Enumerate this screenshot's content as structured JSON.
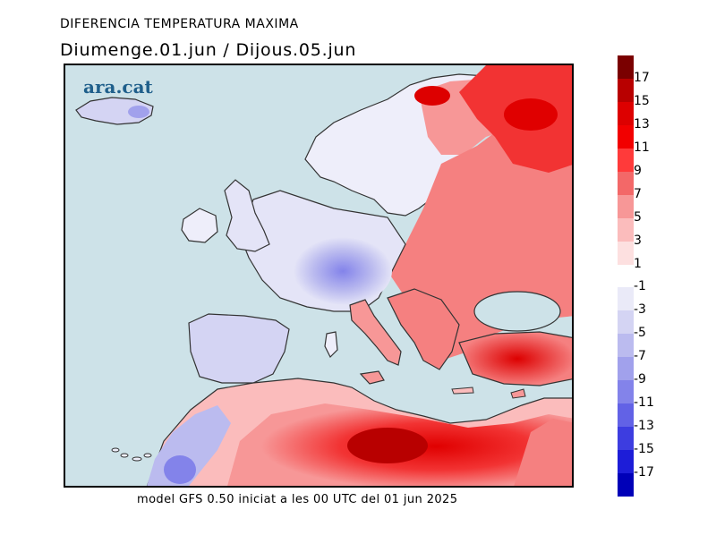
{
  "header": {
    "title": "DIFERENCIA TEMPERATURA MAXIMA",
    "subtitle": "Diumenge.01.jun / Dijous.05.jun"
  },
  "map": {
    "logo": "ara.cat",
    "region": "Europe and North Africa",
    "sea_color": "#cde2e8",
    "coast_color": "#333333"
  },
  "footer": {
    "caption": "model GFS 0.50 iniciat a les 00 UTC del 01 jun 2025"
  },
  "legend": {
    "labels": [
      "17",
      "15",
      "13",
      "11",
      "9",
      "7",
      "5",
      "3",
      "1",
      "-1",
      "-3",
      "-5",
      "-7",
      "-9",
      "-11",
      "-13",
      "-15",
      "-17"
    ],
    "colors": [
      "#7a0000",
      "#b80000",
      "#dd0000",
      "#f20000",
      "#ff3a3a",
      "#f36868",
      "#f79797",
      "#fbbcbc",
      "#fde0e0",
      "#ffffff",
      "#eaeaf8",
      "#d4d4f3",
      "#bbbbef",
      "#a1a1ec",
      "#8383ea",
      "#6262e6",
      "#3d3de0",
      "#1d1dd8",
      "#0000b8"
    ]
  }
}
